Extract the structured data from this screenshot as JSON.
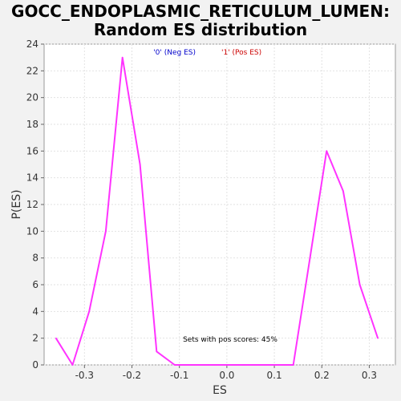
{
  "chart_data": {
    "type": "line",
    "title_line1": "GOCC_ENDOPLASMIC_RETICULUM_LUMEN:",
    "title_line2": "Random ES distribution",
    "xlabel": "ES",
    "ylabel": "P(ES)",
    "xlim": [
      -0.385,
      0.355
    ],
    "ylim": [
      0,
      24
    ],
    "xticks": [
      -0.3,
      -0.2,
      -0.1,
      0.0,
      0.1,
      0.2,
      0.3
    ],
    "xtick_labels": [
      "-0.3",
      "-0.2",
      "-0.1",
      "0.0",
      "0.1",
      "0.2",
      "0.3"
    ],
    "yticks": [
      0,
      2,
      4,
      6,
      8,
      10,
      12,
      14,
      16,
      18,
      20,
      22,
      24
    ],
    "ytick_labels": [
      "0",
      "2",
      "4",
      "6",
      "8",
      "10",
      "12",
      "14",
      "16",
      "18",
      "20",
      "22",
      "24"
    ],
    "grid": true,
    "legend": {
      "placement": "top-center",
      "neg_label": "'0' (Neg ES)",
      "pos_label": "'1' (Pos ES)",
      "neg_color": "#0000cc",
      "pos_color": "#cc0000"
    },
    "annotation": "Sets with pos scores: 45%",
    "series": [
      {
        "color": "#ff33ff",
        "x": [
          -0.36,
          -0.325,
          -0.29,
          -0.255,
          -0.22,
          -0.183,
          -0.148,
          -0.11,
          -0.075,
          -0.04,
          0.0,
          0.035,
          0.07,
          0.105,
          0.14,
          0.175,
          0.21,
          0.245,
          0.28,
          0.318
        ],
        "y": [
          2,
          0,
          4,
          10,
          23,
          15,
          1,
          0,
          0,
          0,
          0,
          0,
          0,
          0,
          0,
          8,
          16,
          13,
          6,
          2
        ]
      }
    ]
  }
}
